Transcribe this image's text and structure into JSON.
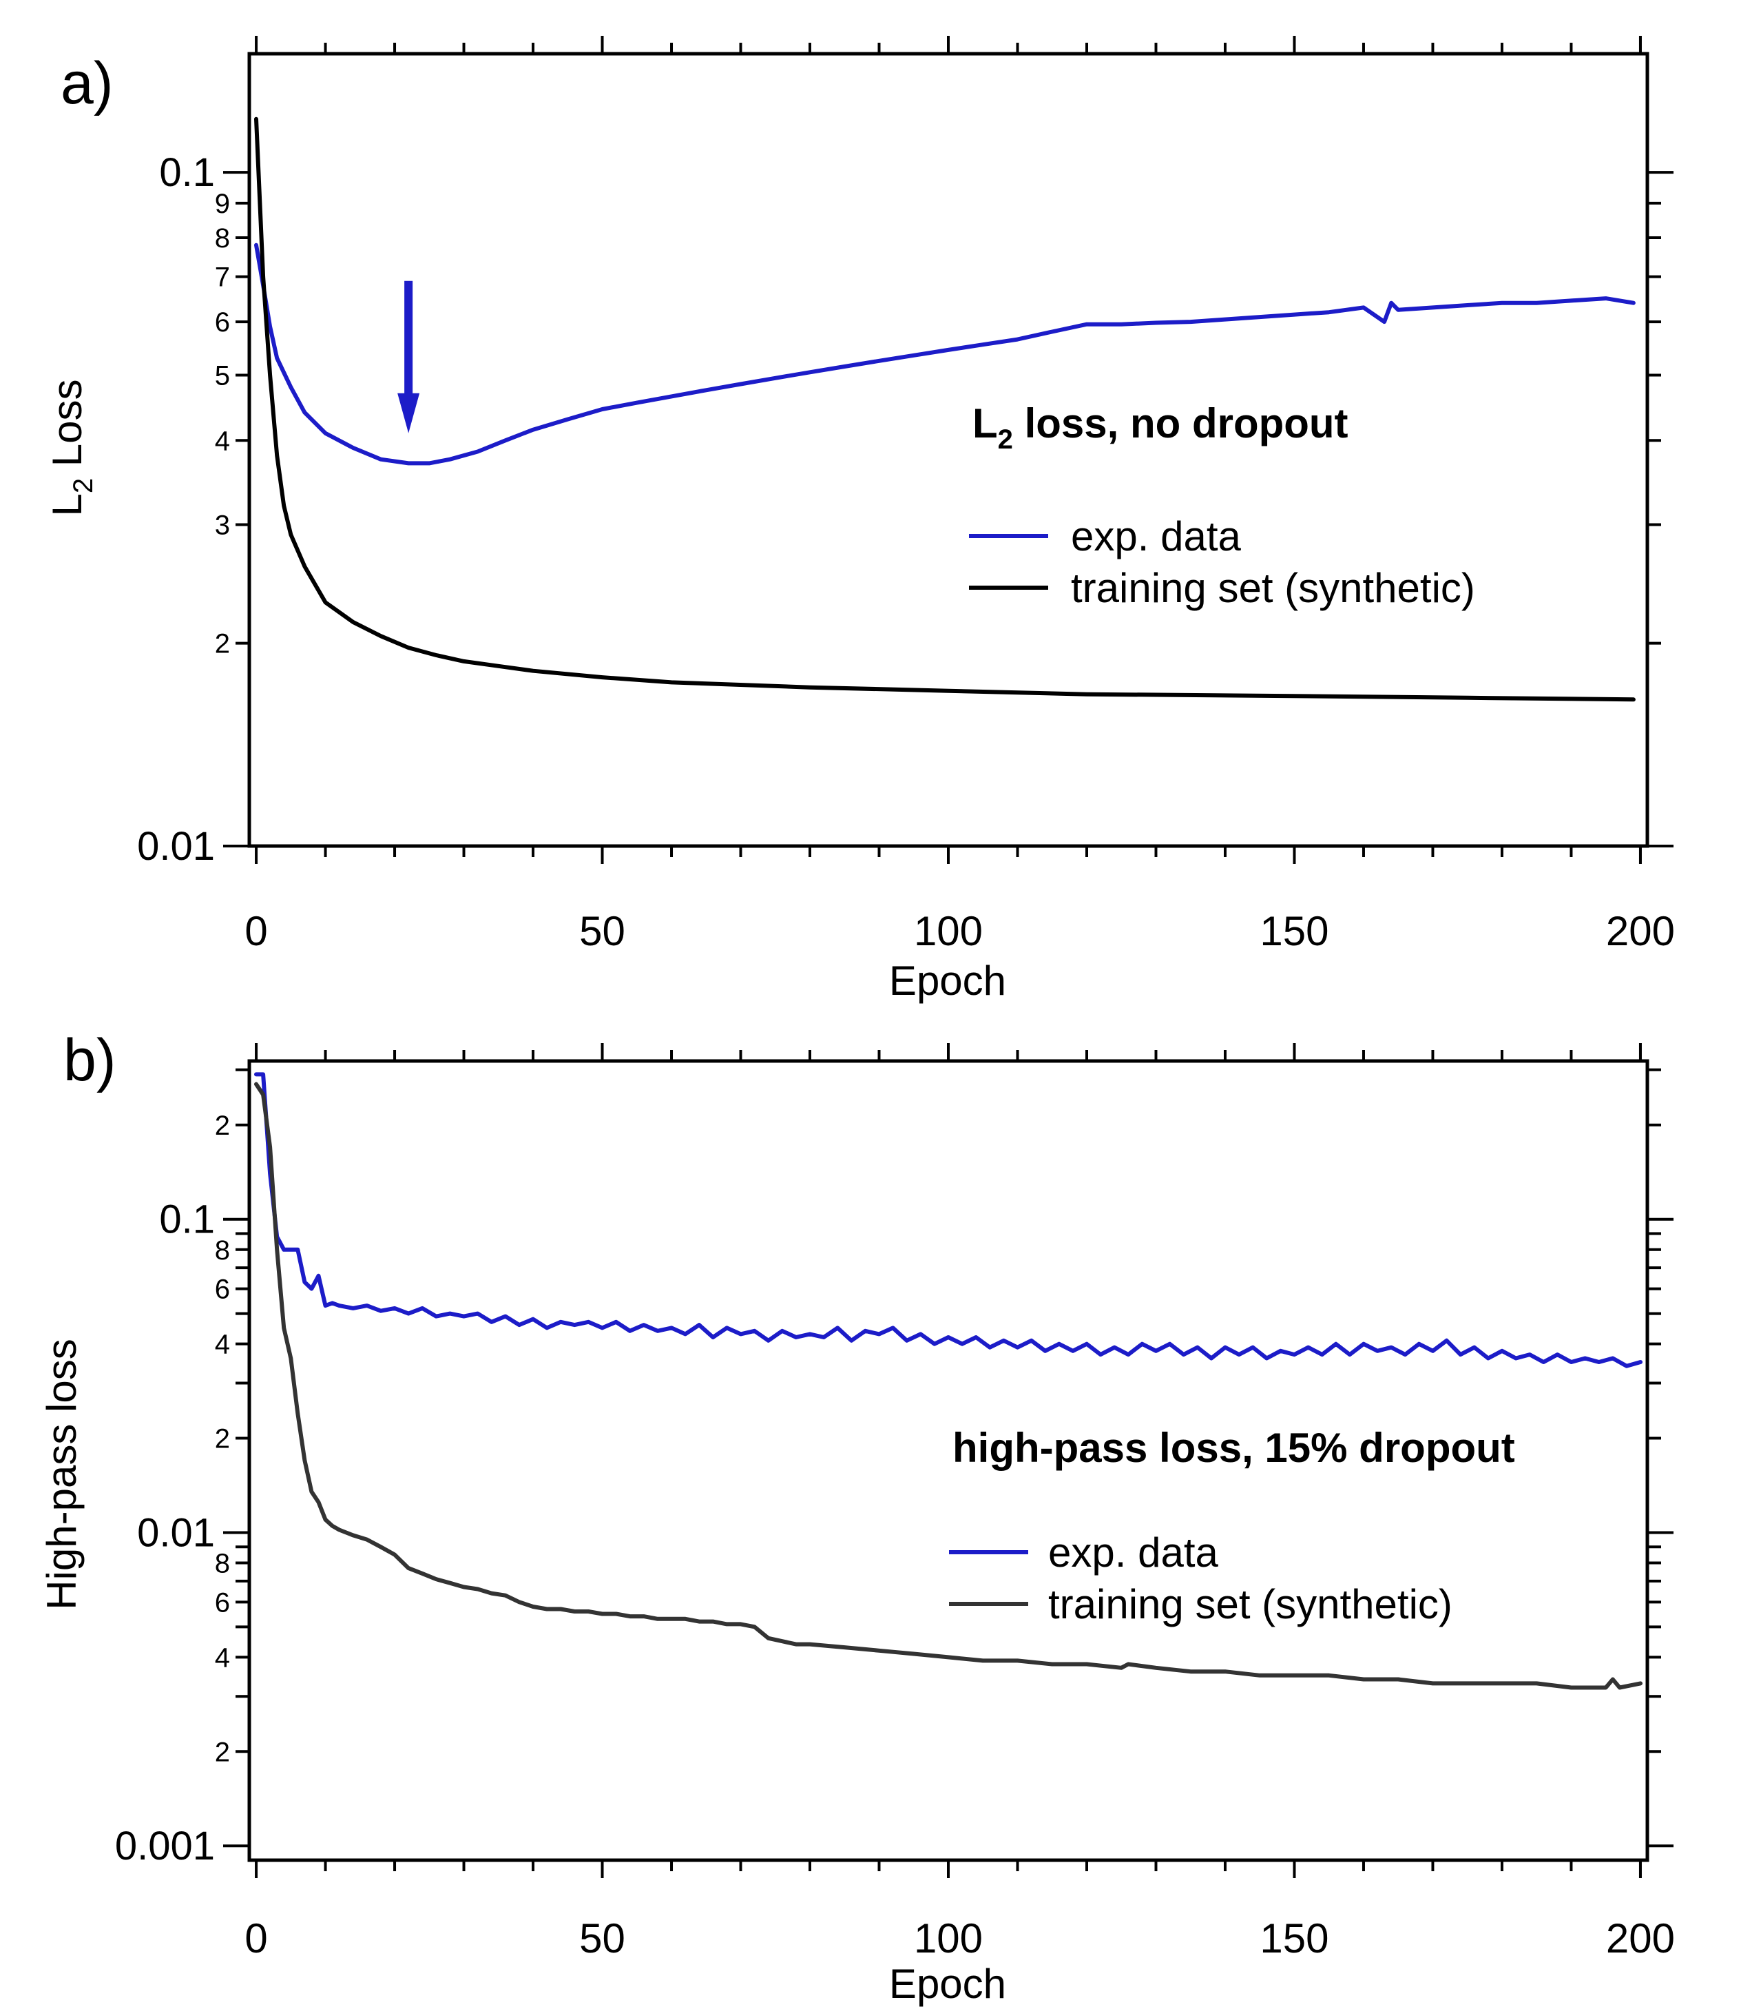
{
  "chart_data": [
    {
      "type": "line",
      "panel_label": "a)",
      "xlabel": "Epoch",
      "ylabel": "L",
      "ylabel_sub": "2",
      "ylabel_rest": " Loss",
      "annotation": {
        "prefix": "L",
        "sub": "2",
        "rest": " loss, no dropout"
      },
      "arrow": {
        "x": 22,
        "y_from": 0.069,
        "y_to": 0.041,
        "color": "#1c1cc8"
      },
      "legend_position": "right",
      "xlim": [
        -1,
        201
      ],
      "ylim": [
        0.01,
        0.15
      ],
      "yscale": "log",
      "x_ticks": [
        0,
        50,
        100,
        150,
        200
      ],
      "y_major_ticks": [
        {
          "value": 0.01,
          "label": "0.01"
        },
        {
          "value": 0.1,
          "label": "0.1"
        }
      ],
      "y_minor_ticks": [
        {
          "value": 0.02,
          "label": "2"
        },
        {
          "value": 0.03,
          "label": "3"
        },
        {
          "value": 0.04,
          "label": "4"
        },
        {
          "value": 0.05,
          "label": "5"
        },
        {
          "value": 0.06,
          "label": "6"
        },
        {
          "value": 0.07,
          "label": "7"
        },
        {
          "value": 0.08,
          "label": "8"
        },
        {
          "value": 0.09,
          "label": "9"
        }
      ],
      "series": [
        {
          "name": "exp. data",
          "color": "#1c1cc8",
          "x": [
            0,
            1,
            2,
            3,
            5,
            7,
            10,
            14,
            18,
            22,
            25,
            28,
            32,
            36,
            40,
            45,
            50,
            55,
            60,
            65,
            70,
            75,
            80,
            85,
            90,
            95,
            100,
            105,
            110,
            115,
            120,
            125,
            130,
            135,
            140,
            145,
            150,
            155,
            160,
            163,
            164,
            165,
            170,
            175,
            180,
            185,
            190,
            195,
            199
          ],
          "y": [
            0.078,
            0.068,
            0.059,
            0.053,
            0.048,
            0.044,
            0.041,
            0.039,
            0.0375,
            0.037,
            0.037,
            0.0375,
            0.0385,
            0.04,
            0.0415,
            0.043,
            0.0445,
            0.0455,
            0.0465,
            0.0475,
            0.0485,
            0.0495,
            0.0505,
            0.0515,
            0.0525,
            0.0535,
            0.0545,
            0.0555,
            0.0565,
            0.058,
            0.0595,
            0.0595,
            0.0598,
            0.06,
            0.0605,
            0.061,
            0.0615,
            0.062,
            0.063,
            0.06,
            0.064,
            0.0625,
            0.063,
            0.0635,
            0.064,
            0.064,
            0.0645,
            0.065,
            0.064
          ]
        },
        {
          "name": "training set (synthetic)",
          "color": "#000000",
          "x": [
            0,
            1,
            2,
            3,
            4,
            5,
            7,
            10,
            14,
            18,
            22,
            26,
            30,
            35,
            40,
            50,
            60,
            80,
            100,
            120,
            150,
            175,
            199
          ],
          "y": [
            0.12,
            0.07,
            0.05,
            0.038,
            0.032,
            0.029,
            0.026,
            0.023,
            0.0215,
            0.0205,
            0.0197,
            0.0192,
            0.0188,
            0.0185,
            0.0182,
            0.0178,
            0.0175,
            0.0172,
            0.017,
            0.0168,
            0.0167,
            0.0166,
            0.0165
          ]
        }
      ]
    },
    {
      "type": "line",
      "panel_label": "b)",
      "xlabel": "Epoch",
      "ylabel": "High-pass loss",
      "annotation": {
        "prefix": "high-pass loss, 15% dropout",
        "sub": "",
        "rest": ""
      },
      "legend_position": "right",
      "xlim": [
        -1,
        201
      ],
      "ylim": [
        0.0009,
        0.32
      ],
      "yscale": "log",
      "x_ticks": [
        0,
        50,
        100,
        150,
        200
      ],
      "y_major_ticks": [
        {
          "value": 0.001,
          "label": "0.001"
        },
        {
          "value": 0.01,
          "label": "0.01"
        },
        {
          "value": 0.1,
          "label": "0.1"
        }
      ],
      "y_minor_ticks": [
        {
          "value": 0.002,
          "label": "2"
        },
        {
          "value": 0.004,
          "label": "4"
        },
        {
          "value": 0.006,
          "label": "6"
        },
        {
          "value": 0.008,
          "label": "8"
        },
        {
          "value": 0.02,
          "label": "2"
        },
        {
          "value": 0.04,
          "label": "4"
        },
        {
          "value": 0.06,
          "label": "6"
        },
        {
          "value": 0.08,
          "label": "8"
        },
        {
          "value": 0.2,
          "label": "2"
        }
      ],
      "y_unlabeled_ticks": [
        0.003,
        0.005,
        0.007,
        0.009,
        0.03,
        0.05,
        0.07,
        0.09,
        0.3
      ],
      "series": [
        {
          "name": "exp. data",
          "color": "#1c1cc8",
          "x": [
            0,
            1,
            2,
            3,
            4,
            5,
            6,
            7,
            8,
            9,
            10,
            11,
            12,
            14,
            16,
            18,
            20,
            22,
            24,
            26,
            28,
            30,
            32,
            34,
            36,
            38,
            40,
            42,
            44,
            46,
            48,
            50,
            52,
            54,
            56,
            58,
            60,
            62,
            64,
            66,
            68,
            70,
            72,
            74,
            76,
            78,
            80,
            82,
            84,
            86,
            88,
            90,
            92,
            94,
            96,
            98,
            100,
            102,
            104,
            106,
            108,
            110,
            112,
            114,
            116,
            118,
            120,
            122,
            124,
            126,
            128,
            130,
            132,
            134,
            136,
            138,
            140,
            142,
            144,
            146,
            148,
            150,
            152,
            154,
            156,
            158,
            160,
            162,
            164,
            166,
            168,
            170,
            172,
            174,
            176,
            178,
            180,
            182,
            184,
            186,
            188,
            190,
            192,
            194,
            196,
            198,
            200
          ],
          "y": [
            0.29,
            0.29,
            0.14,
            0.088,
            0.08,
            0.08,
            0.08,
            0.063,
            0.06,
            0.066,
            0.053,
            0.054,
            0.053,
            0.052,
            0.053,
            0.051,
            0.052,
            0.05,
            0.052,
            0.049,
            0.05,
            0.049,
            0.05,
            0.047,
            0.049,
            0.046,
            0.048,
            0.045,
            0.047,
            0.046,
            0.047,
            0.045,
            0.047,
            0.044,
            0.046,
            0.044,
            0.045,
            0.043,
            0.046,
            0.042,
            0.045,
            0.043,
            0.044,
            0.041,
            0.044,
            0.042,
            0.043,
            0.042,
            0.045,
            0.041,
            0.044,
            0.043,
            0.045,
            0.041,
            0.043,
            0.04,
            0.042,
            0.04,
            0.042,
            0.039,
            0.041,
            0.039,
            0.041,
            0.038,
            0.04,
            0.038,
            0.04,
            0.037,
            0.039,
            0.037,
            0.04,
            0.038,
            0.04,
            0.037,
            0.039,
            0.036,
            0.039,
            0.037,
            0.039,
            0.036,
            0.038,
            0.037,
            0.039,
            0.037,
            0.04,
            0.037,
            0.04,
            0.038,
            0.039,
            0.037,
            0.04,
            0.038,
            0.041,
            0.037,
            0.039,
            0.036,
            0.038,
            0.036,
            0.037,
            0.035,
            0.037,
            0.035,
            0.036,
            0.035,
            0.036,
            0.034,
            0.035
          ]
        },
        {
          "name": "training set (synthetic)",
          "color": "#333333",
          "x": [
            0,
            1,
            2,
            3,
            4,
            5,
            6,
            7,
            8,
            9,
            10,
            11,
            12,
            14,
            16,
            18,
            20,
            22,
            24,
            26,
            28,
            30,
            32,
            34,
            36,
            38,
            40,
            42,
            44,
            46,
            48,
            50,
            52,
            54,
            56,
            58,
            60,
            62,
            64,
            66,
            68,
            70,
            72,
            74,
            76,
            78,
            80,
            85,
            90,
            95,
            100,
            105,
            110,
            115,
            120,
            125,
            126,
            130,
            135,
            140,
            145,
            150,
            155,
            160,
            165,
            170,
            175,
            180,
            185,
            190,
            195,
            196,
            197,
            200
          ],
          "y": [
            0.27,
            0.25,
            0.17,
            0.08,
            0.045,
            0.036,
            0.024,
            0.017,
            0.0135,
            0.0125,
            0.011,
            0.0105,
            0.0102,
            0.0098,
            0.0095,
            0.009,
            0.0085,
            0.0077,
            0.0074,
            0.0071,
            0.0069,
            0.0067,
            0.0066,
            0.0064,
            0.0063,
            0.006,
            0.0058,
            0.0057,
            0.0057,
            0.0056,
            0.0056,
            0.0055,
            0.0055,
            0.0054,
            0.0054,
            0.0053,
            0.0053,
            0.0053,
            0.0052,
            0.0052,
            0.0051,
            0.0051,
            0.005,
            0.0046,
            0.0045,
            0.0044,
            0.0044,
            0.0043,
            0.0042,
            0.0041,
            0.004,
            0.0039,
            0.0039,
            0.0038,
            0.0038,
            0.0037,
            0.0038,
            0.0037,
            0.0036,
            0.0036,
            0.0035,
            0.0035,
            0.0035,
            0.0034,
            0.0034,
            0.0033,
            0.0033,
            0.0033,
            0.0033,
            0.0032,
            0.0032,
            0.0034,
            0.0032,
            0.0033
          ]
        }
      ]
    }
  ]
}
